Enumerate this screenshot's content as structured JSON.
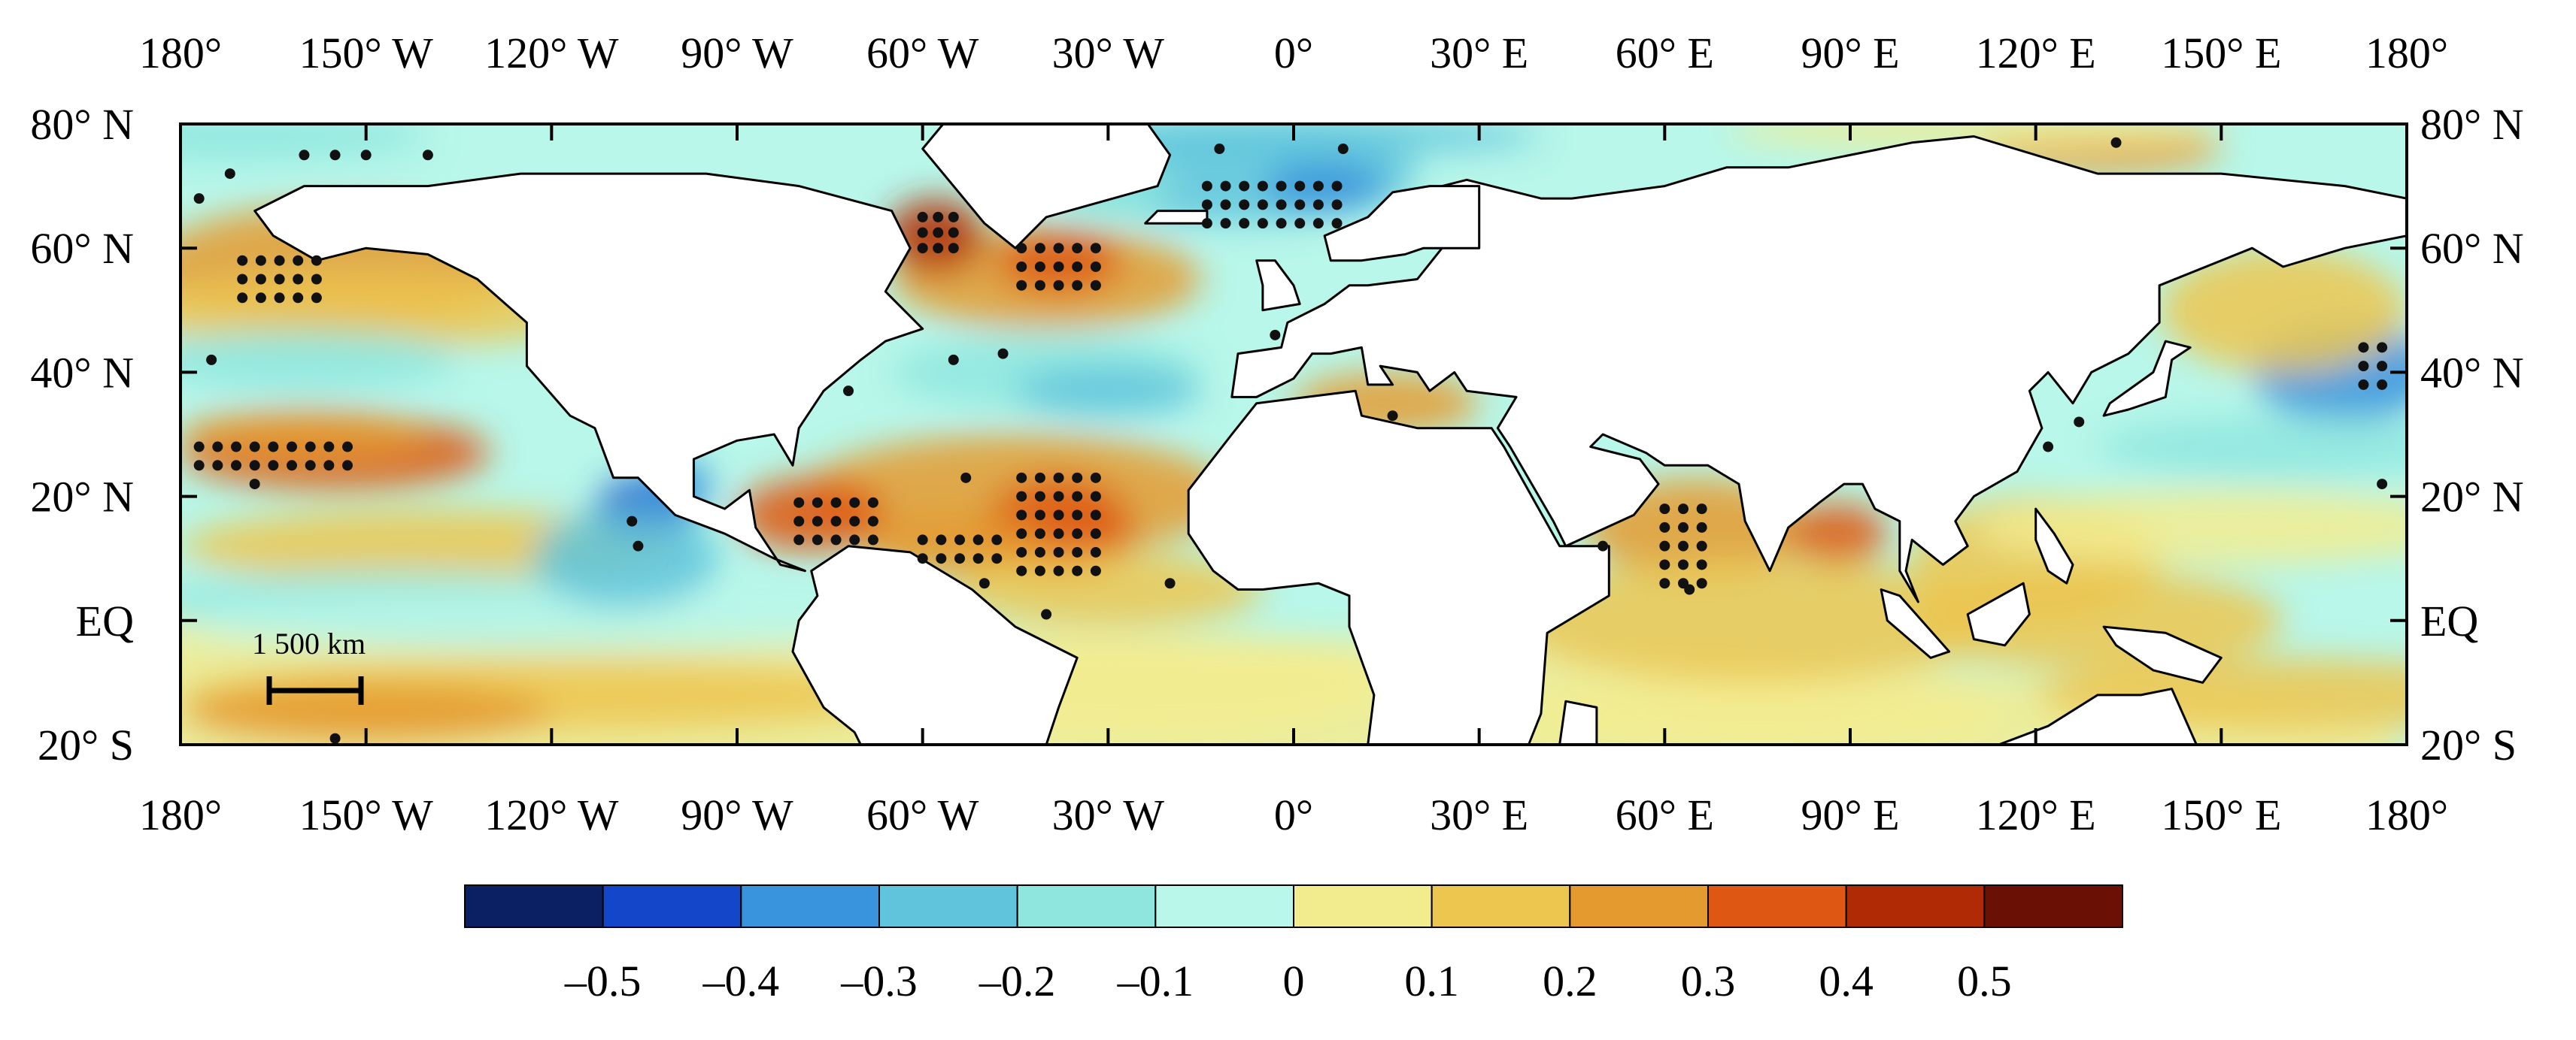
{
  "map": {
    "projection": "equirectangular",
    "extent": {
      "lon": [
        -180,
        180
      ],
      "lat": [
        -20,
        80
      ]
    },
    "x_ticks": [
      {
        "lon": -180,
        "label": "180°"
      },
      {
        "lon": -150,
        "label": "150° W"
      },
      {
        "lon": -120,
        "label": "120° W"
      },
      {
        "lon": -90,
        "label": "90° W"
      },
      {
        "lon": -60,
        "label": "60° W"
      },
      {
        "lon": -30,
        "label": "30° W"
      },
      {
        "lon": 0,
        "label": "0°"
      },
      {
        "lon": 30,
        "label": "30° E"
      },
      {
        "lon": 60,
        "label": "60° E"
      },
      {
        "lon": 90,
        "label": "90° E"
      },
      {
        "lon": 120,
        "label": "120° E"
      },
      {
        "lon": 150,
        "label": "150° E"
      },
      {
        "lon": 180,
        "label": "180°"
      }
    ],
    "y_ticks": [
      {
        "lat": 80,
        "label": "80° N"
      },
      {
        "lat": 60,
        "label": "60° N"
      },
      {
        "lat": 40,
        "label": "40° N"
      },
      {
        "lat": 20,
        "label": "20° N"
      },
      {
        "lat": 0,
        "label": "EQ"
      },
      {
        "lat": -20,
        "label": "20° S"
      }
    ],
    "scale_bar": {
      "label": "1 500 km",
      "length_km": 1500
    },
    "land_color": "#ffffff",
    "stipple_color": "#111111"
  },
  "colorbar": {
    "colors": [
      "#0b1f63",
      "#1446c9",
      "#3a93dd",
      "#5fc4dc",
      "#8ee6de",
      "#b8f7ea",
      "#f3ec8f",
      "#edc64f",
      "#e59a30",
      "#de5713",
      "#b02a06",
      "#6a1004"
    ],
    "tick_labels": [
      "–0.5",
      "–0.4",
      "–0.3",
      "–0.2",
      "–0.1",
      "0",
      "0.1",
      "0.2",
      "0.3",
      "0.4",
      "0.5"
    ]
  }
}
